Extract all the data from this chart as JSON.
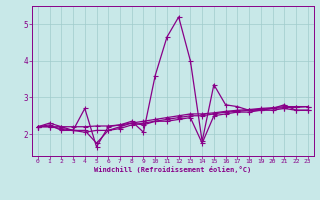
{
  "x_values": [
    0,
    1,
    2,
    3,
    4,
    5,
    6,
    7,
    8,
    9,
    10,
    11,
    12,
    13,
    14,
    15,
    16,
    17,
    18,
    19,
    20,
    21,
    22,
    23
  ],
  "line1": [
    2.2,
    2.3,
    2.2,
    2.1,
    2.7,
    1.65,
    2.2,
    2.25,
    2.35,
    2.05,
    3.6,
    4.65,
    5.2,
    4.0,
    1.8,
    3.35,
    2.8,
    2.75,
    2.65,
    2.65,
    2.7,
    2.8,
    2.65,
    2.65
  ],
  "line2": [
    2.2,
    2.25,
    2.1,
    2.1,
    2.1,
    1.75,
    2.1,
    2.2,
    2.3,
    2.25,
    2.35,
    2.35,
    2.4,
    2.45,
    1.75,
    2.5,
    2.55,
    2.6,
    2.6,
    2.65,
    2.65,
    2.7,
    2.65,
    2.65
  ],
  "line3": [
    2.2,
    2.2,
    2.15,
    2.1,
    2.05,
    2.1,
    2.1,
    2.15,
    2.25,
    2.3,
    2.35,
    2.4,
    2.45,
    2.5,
    2.5,
    2.55,
    2.6,
    2.62,
    2.65,
    2.68,
    2.7,
    2.72,
    2.73,
    2.75
  ],
  "line4": [
    2.2,
    2.2,
    2.2,
    2.2,
    2.2,
    2.22,
    2.22,
    2.25,
    2.3,
    2.35,
    2.4,
    2.45,
    2.5,
    2.55,
    2.55,
    2.58,
    2.62,
    2.65,
    2.67,
    2.7,
    2.72,
    2.75,
    2.75,
    2.75
  ],
  "line_color": "#880088",
  "bg_color": "#c8e8e8",
  "grid_color": "#a0cccc",
  "xlabel": "Windchill (Refroidissement éolien,°C)",
  "xlim": [
    -0.5,
    23.5
  ],
  "ylim": [
    1.4,
    5.5
  ],
  "yticks": [
    2,
    3,
    4,
    5
  ],
  "xticks": [
    0,
    1,
    2,
    3,
    4,
    5,
    6,
    7,
    8,
    9,
    10,
    11,
    12,
    13,
    14,
    15,
    16,
    17,
    18,
    19,
    20,
    21,
    22,
    23
  ]
}
